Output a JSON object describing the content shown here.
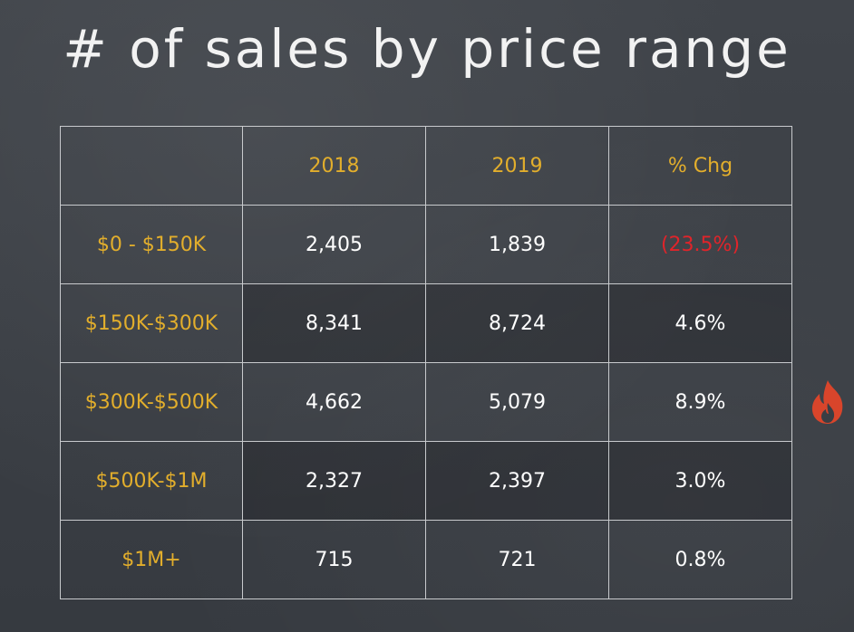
{
  "title": "# of sales by price range",
  "table": {
    "headers": [
      "",
      "2018",
      "2019",
      "% Chg"
    ],
    "rows": [
      {
        "range": "$0 - $150K",
        "y2018": "2,405",
        "y2019": "1,839",
        "chg": "(23.5%)"
      },
      {
        "range": "$150K-$300K",
        "y2018": "8,341",
        "y2019": "8,724",
        "chg": "4.6%"
      },
      {
        "range": "$300K-$500K",
        "y2018": "4,662",
        "y2019": "5,079",
        "chg": "8.9%"
      },
      {
        "range": "$500K-$1M",
        "y2018": "2,327",
        "y2019": "2,397",
        "chg": "3.0%"
      },
      {
        "range": "$1M+",
        "y2018": "715",
        "y2019": "721",
        "chg": "0.8%"
      }
    ]
  },
  "colors": {
    "header_text": "#e2ae2c",
    "negative_text": "#e0242a",
    "flame": "#d9452b"
  },
  "icons": {
    "flame": "fire-icon"
  }
}
